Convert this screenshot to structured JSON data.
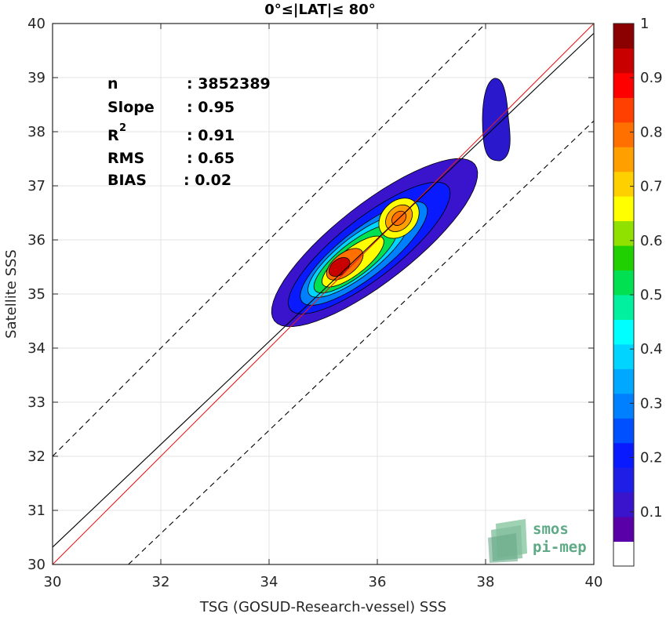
{
  "chart_data": {
    "type": "contour",
    "title": "0°≤|LAT|≤ 80°",
    "xlabel": "TSG (GOSUD-Research-vessel) SSS",
    "ylabel": "Satellite SSS",
    "xlim": [
      30,
      40
    ],
    "ylim": [
      30,
      40
    ],
    "xticks": [
      "30",
      "32",
      "34",
      "36",
      "38",
      "40"
    ],
    "yticks": [
      "30",
      "31",
      "32",
      "33",
      "34",
      "35",
      "36",
      "37",
      "38",
      "39",
      "40"
    ],
    "grid": true,
    "stats": [
      {
        "label": "n",
        "value": ": 3852389"
      },
      {
        "label": "Slope",
        "value": ": 0.95"
      },
      {
        "label": "R",
        "sup": "2",
        "value": ": 0.91"
      },
      {
        "label": "RMS",
        "value": ": 0.65"
      },
      {
        "label": "BIAS",
        "value": ": 0.02"
      }
    ],
    "lines": [
      {
        "kind": "identity",
        "color": "#e41a1c",
        "points": [
          [
            30,
            30
          ],
          [
            40,
            40
          ]
        ]
      },
      {
        "kind": "regression",
        "color": "#000000",
        "points": [
          [
            30,
            30.32
          ],
          [
            40,
            39.82
          ]
        ]
      },
      {
        "kind": "upper-bound",
        "color": "#000000",
        "dash": true,
        "points": [
          [
            30,
            32
          ],
          [
            38.4,
            40.4
          ]
        ]
      },
      {
        "kind": "lower-bound",
        "color": "#000000",
        "dash": true,
        "points": [
          [
            31.4,
            30
          ],
          [
            40,
            38.2
          ]
        ]
      }
    ],
    "density_peaks": [
      {
        "x": 35.3,
        "y": 35.5,
        "density": 1.0
      },
      {
        "x": 36.4,
        "y": 36.4,
        "density": 0.75
      },
      {
        "x": 38.2,
        "y": 38.3,
        "density": 0.1
      }
    ],
    "colorbar": {
      "ticks": [
        "0.1",
        "0.2",
        "0.3",
        "0.4",
        "0.5",
        "0.6",
        "0.7",
        "0.8",
        "0.9",
        "1"
      ],
      "range": [
        0,
        1
      ],
      "colors": [
        "#ffffff",
        "#5a00a8",
        "#3a14cc",
        "#1e1ee6",
        "#0a1aff",
        "#0050ff",
        "#0080ff",
        "#00a8ff",
        "#00d4ff",
        "#00ffff",
        "#00f0a0",
        "#00e050",
        "#20d000",
        "#90e000",
        "#ffff00",
        "#ffd000",
        "#ffa000",
        "#ff7000",
        "#ff4000",
        "#ff0000",
        "#c80000",
        "#8b0000"
      ]
    }
  },
  "logo": {
    "line1": "smos",
    "line2": "pi-mep",
    "color": "#5faa86"
  }
}
